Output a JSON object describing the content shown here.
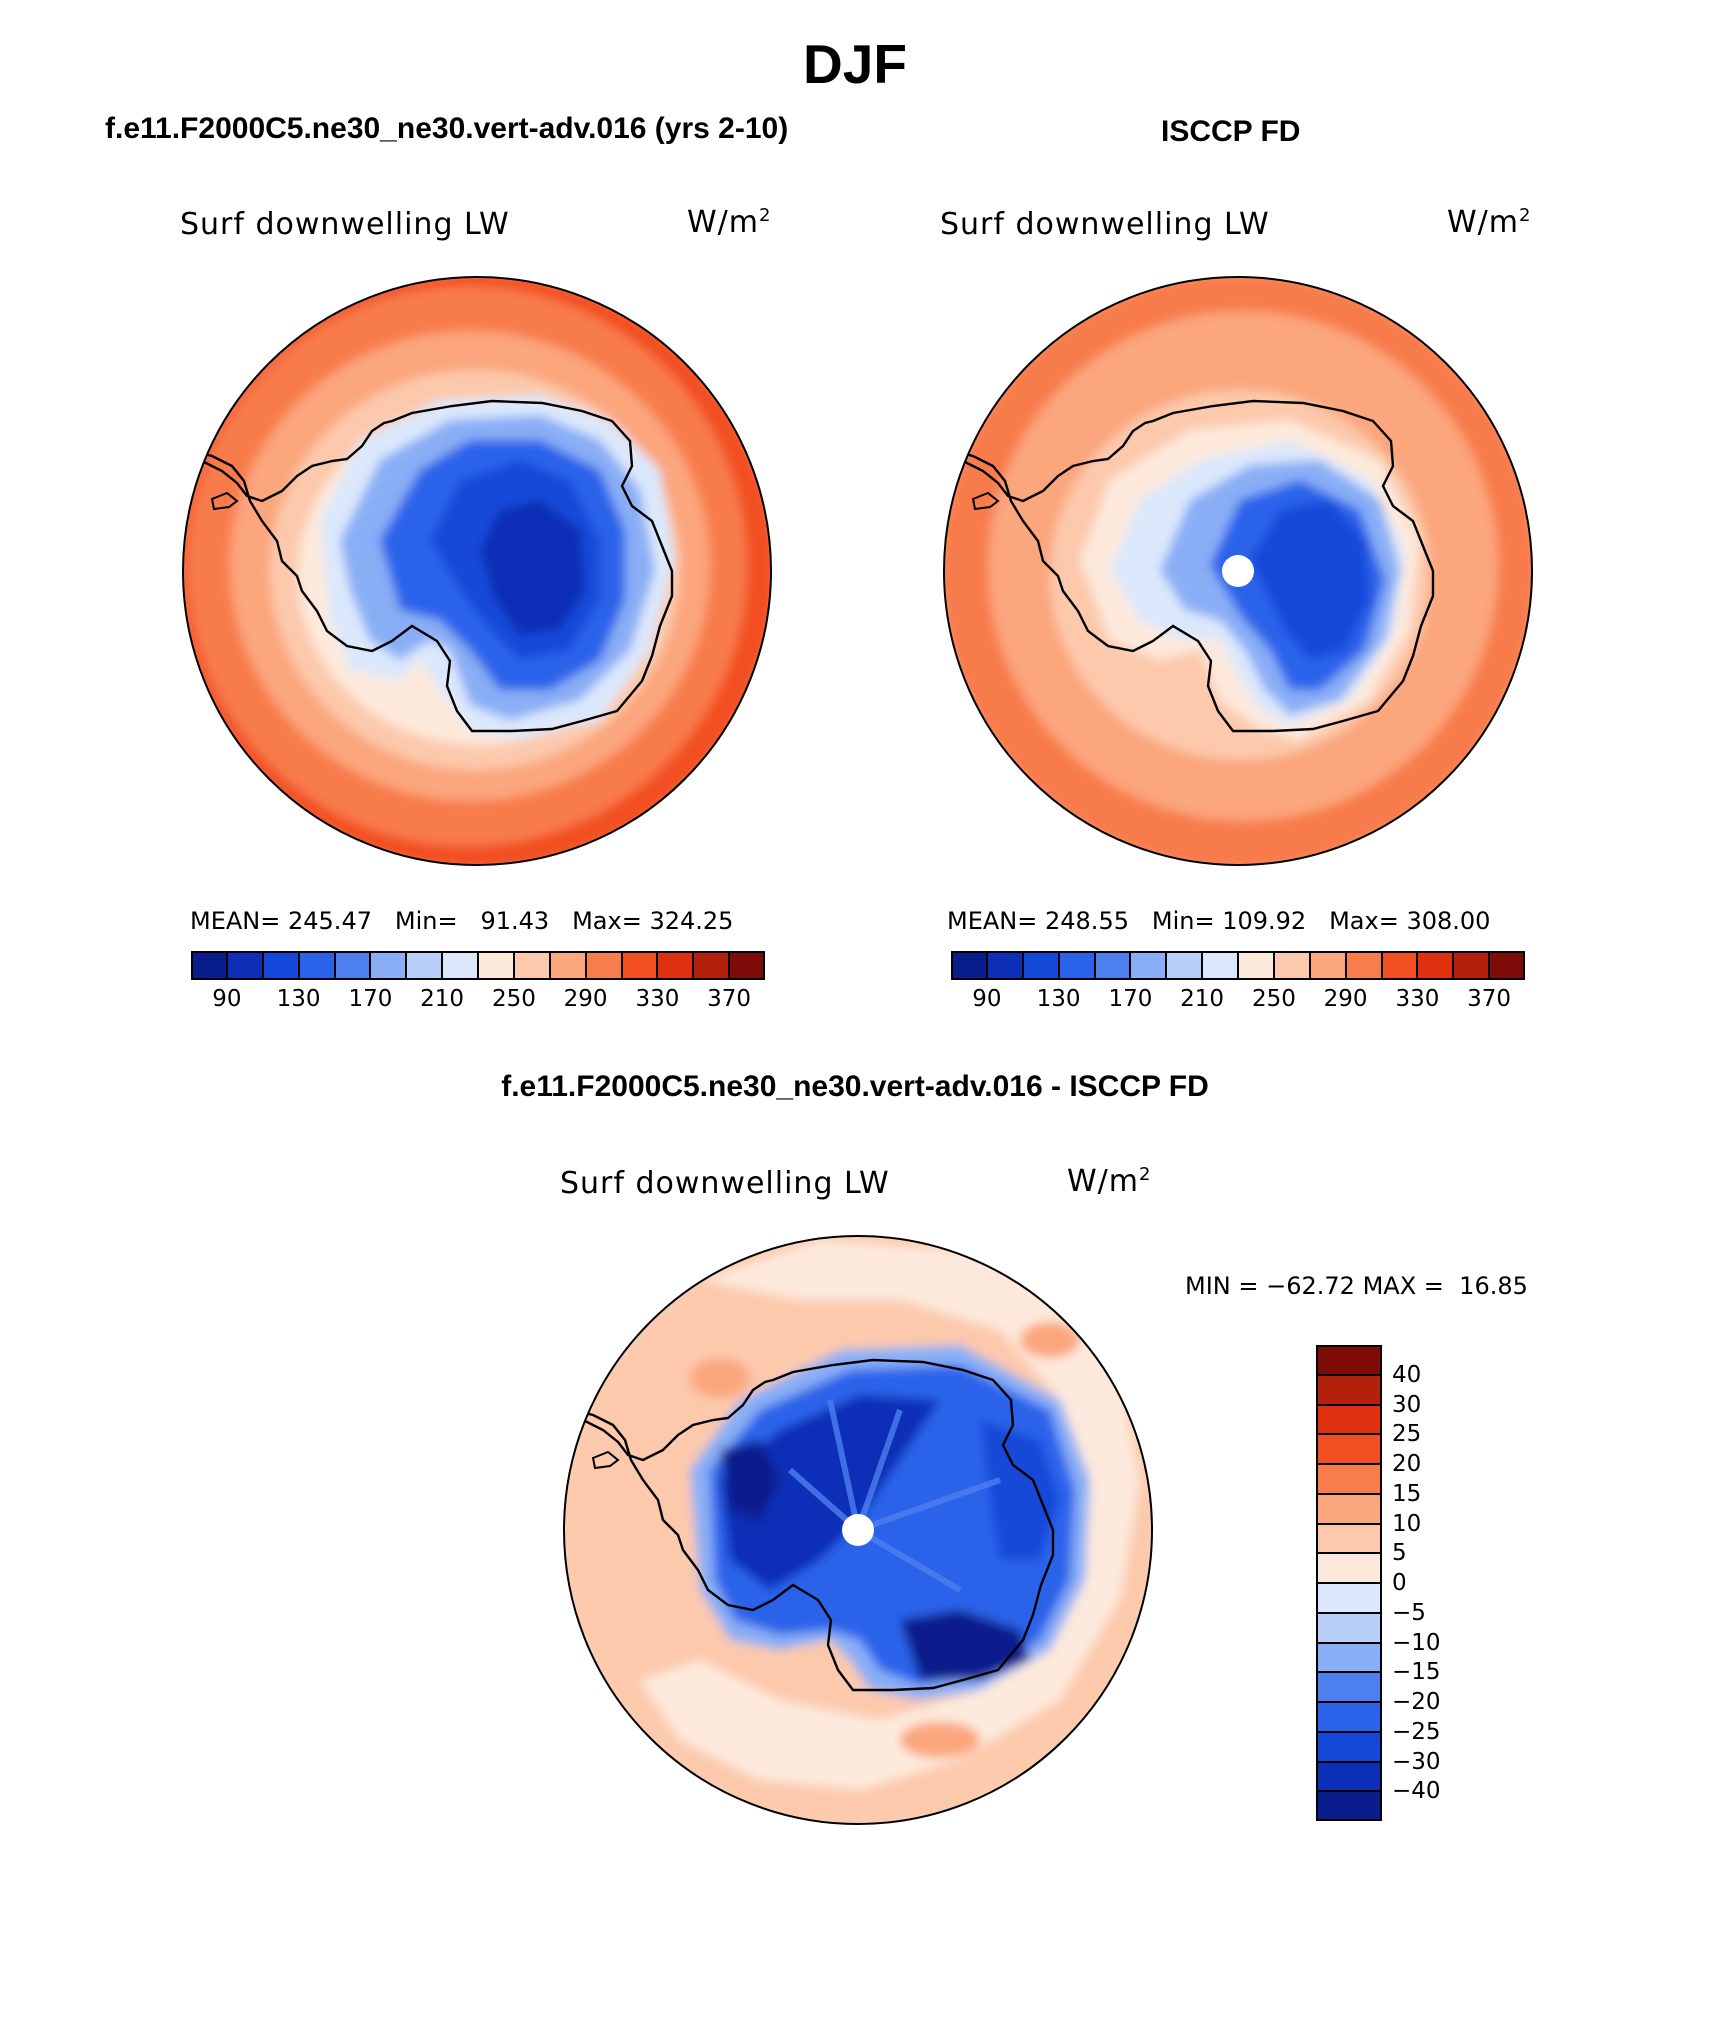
{
  "figure": {
    "title": "DJF",
    "panel_top_left_title": "f.e11.F2000C5.ne30_ne30.vert-adv.016 (yrs 2-10)",
    "panel_top_right_title": "ISCCP FD",
    "panel_bottom_title": "f.e11.F2000C5.ne30_ne30.vert-adv.016 - ISCCP FD"
  },
  "colors": {
    "abs_scale": [
      "#0a1d8c",
      "#0d2fb6",
      "#1448d8",
      "#2a63ea",
      "#4d7fef",
      "#89aef6",
      "#b9cff9",
      "#dbe8fc",
      "#fde9dc",
      "#fcc9ac",
      "#fba67d",
      "#f87c4c",
      "#f25023",
      "#df3110",
      "#b3200b",
      "#7d0c08"
    ],
    "diff_scale": [
      "#0a1d8c",
      "#0d2fb6",
      "#1448d8",
      "#2a63ea",
      "#4d7fef",
      "#89aef6",
      "#b9cff9",
      "#dbe8fc",
      "#fde9dc",
      "#fcc9ac",
      "#fba67d",
      "#f87c4c",
      "#f25023",
      "#df3110",
      "#b3200b",
      "#7d0c08"
    ]
  },
  "chart_data": [
    {
      "type": "heatmap",
      "projection": "south-polar stereographic",
      "title": "f.e11.F2000C5.ne30_ne30.vert-adv.016 (yrs 2-10)",
      "left_label": "Surf downwelling LW",
      "units": "W/m",
      "units_sup": "2",
      "stats": {
        "mean_label": "MEAN=",
        "mean": "245.47",
        "min_label": "Min=",
        "min": "91.43",
        "max_label": "Max=",
        "max": "324.25"
      },
      "colorbar": {
        "orientation": "horizontal",
        "labels": [
          "90",
          "130",
          "170",
          "210",
          "250",
          "290",
          "330",
          "370"
        ]
      }
    },
    {
      "type": "heatmap",
      "projection": "south-polar stereographic",
      "title": "ISCCP FD",
      "left_label": "Surf downwelling LW",
      "units": "W/m",
      "units_sup": "2",
      "stats": {
        "mean_label": "MEAN=",
        "mean": "248.55",
        "min_label": "Min=",
        "min": "109.92",
        "max_label": "Max=",
        "max": "308.00"
      },
      "colorbar": {
        "orientation": "horizontal",
        "labels": [
          "90",
          "130",
          "170",
          "210",
          "250",
          "290",
          "330",
          "370"
        ]
      }
    },
    {
      "type": "heatmap",
      "projection": "south-polar stereographic",
      "title": "f.e11.F2000C5.ne30_ne30.vert-adv.016 - ISCCP FD",
      "left_label": "Surf downwelling LW",
      "units": "W/m",
      "units_sup": "2",
      "stats": {
        "min_label": "MIN =",
        "min": "−62.72",
        "max_label": "MAX =",
        "max": "16.85"
      },
      "colorbar": {
        "orientation": "vertical",
        "labels": [
          "40",
          "30",
          "25",
          "20",
          "15",
          "10",
          "5",
          "0",
          "−5",
          "−10",
          "−15",
          "−20",
          "−25",
          "−30",
          "−40"
        ]
      }
    }
  ]
}
